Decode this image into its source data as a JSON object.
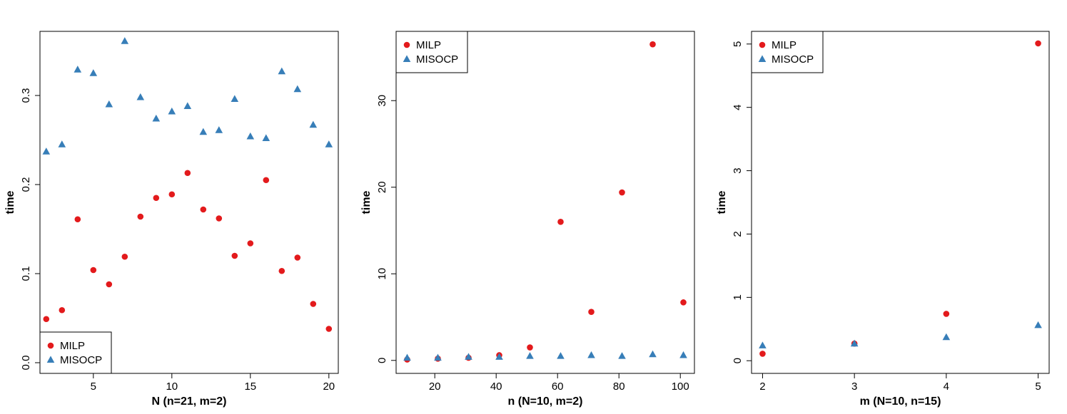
{
  "chart_data": [
    {
      "type": "scatter",
      "xlabel": "N (n=21, m=2)",
      "ylabel": "time",
      "xticks": [
        5,
        10,
        15,
        20
      ],
      "yticks": [
        0.0,
        0.1,
        0.2,
        0.3
      ],
      "ytick_labels": [
        "0.0",
        "0.1",
        "0.2",
        "0.3"
      ],
      "xlim": [
        1.6,
        20.6
      ],
      "ylim": [
        -0.012,
        0.372
      ],
      "legend_position": "bottom-left",
      "series": [
        {
          "name": "MILP",
          "color": "#e31a1c",
          "marker": "circle",
          "x": [
            2,
            3,
            4,
            5,
            6,
            7,
            8,
            9,
            10,
            11,
            12,
            13,
            14,
            15,
            16,
            17,
            18,
            19,
            20
          ],
          "y": [
            0.049,
            0.059,
            0.161,
            0.104,
            0.088,
            0.119,
            0.164,
            0.185,
            0.189,
            0.213,
            0.172,
            0.162,
            0.12,
            0.134,
            0.205,
            0.103,
            0.118,
            0.066,
            0.038
          ]
        },
        {
          "name": "MISOCP",
          "color": "#377eb8",
          "marker": "triangle",
          "x": [
            2,
            3,
            4,
            5,
            6,
            7,
            8,
            9,
            10,
            11,
            12,
            13,
            14,
            15,
            16,
            17,
            18,
            19,
            20
          ],
          "y": [
            0.237,
            0.245,
            0.329,
            0.325,
            0.29,
            0.361,
            0.298,
            0.274,
            0.282,
            0.288,
            0.259,
            0.261,
            0.296,
            0.254,
            0.252,
            0.327,
            0.307,
            0.267,
            0.245
          ]
        }
      ]
    },
    {
      "type": "scatter",
      "xlabel": "n (N=10, m=2)",
      "ylabel": "time",
      "xticks": [
        20,
        40,
        60,
        80,
        100
      ],
      "yticks": [
        0,
        10,
        20,
        30
      ],
      "ytick_labels": [
        "0",
        "10",
        "20",
        "30"
      ],
      "xlim": [
        7.4,
        104.6
      ],
      "ylim": [
        -1.5,
        38
      ],
      "legend_position": "top-left",
      "series": [
        {
          "name": "MILP",
          "color": "#e31a1c",
          "marker": "circle",
          "x": [
            11,
            21,
            31,
            41,
            51,
            61,
            71,
            81,
            91,
            101
          ],
          "y": [
            0.1,
            0.2,
            0.3,
            0.6,
            1.5,
            16.0,
            5.6,
            19.4,
            36.5,
            6.7
          ]
        },
        {
          "name": "MISOCP",
          "color": "#377eb8",
          "marker": "triangle",
          "x": [
            11,
            21,
            31,
            41,
            51,
            61,
            71,
            81,
            91,
            101
          ],
          "y": [
            0.3,
            0.3,
            0.4,
            0.4,
            0.5,
            0.5,
            0.6,
            0.5,
            0.7,
            0.6
          ]
        }
      ]
    },
    {
      "type": "scatter",
      "xlabel": "m (N=10, n=15)",
      "ylabel": "time",
      "xticks": [
        2,
        3,
        4,
        5
      ],
      "yticks": [
        0,
        1,
        2,
        3,
        4,
        5
      ],
      "ytick_labels": [
        "0",
        "1",
        "2",
        "3",
        "4",
        "5"
      ],
      "xlim": [
        1.88,
        5.12
      ],
      "ylim": [
        -0.2,
        5.2
      ],
      "legend_position": "top-left",
      "series": [
        {
          "name": "MILP",
          "color": "#e31a1c",
          "marker": "circle",
          "x": [
            2,
            3,
            4,
            5
          ],
          "y": [
            0.11,
            0.27,
            0.74,
            5.01
          ]
        },
        {
          "name": "MISOCP",
          "color": "#377eb8",
          "marker": "triangle",
          "x": [
            2,
            3,
            4,
            5
          ],
          "y": [
            0.24,
            0.27,
            0.37,
            0.56
          ]
        }
      ]
    }
  ]
}
